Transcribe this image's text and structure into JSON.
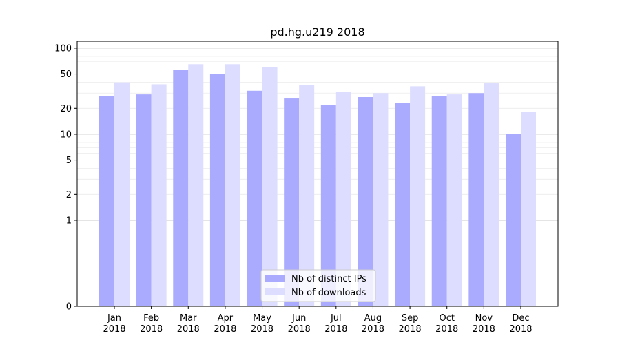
{
  "chart_data": {
    "type": "bar",
    "title": "pd.hg.u219 2018",
    "xlabel": "",
    "ylabel": "",
    "categories": [
      [
        "Jan",
        "2018"
      ],
      [
        "Feb",
        "2018"
      ],
      [
        "Mar",
        "2018"
      ],
      [
        "Apr",
        "2018"
      ],
      [
        "May",
        "2018"
      ],
      [
        "Jun",
        "2018"
      ],
      [
        "Jul",
        "2018"
      ],
      [
        "Aug",
        "2018"
      ],
      [
        "Sep",
        "2018"
      ],
      [
        "Oct",
        "2018"
      ],
      [
        "Nov",
        "2018"
      ],
      [
        "Dec",
        "2018"
      ]
    ],
    "y_scale": "symlog",
    "ylim": [
      0,
      120
    ],
    "yticks": [
      0,
      1,
      2,
      5,
      10,
      20,
      50,
      100
    ],
    "ytick_labels": [
      "0",
      "1",
      "2",
      "5",
      "10",
      "20",
      "50",
      "100"
    ],
    "series": [
      {
        "name": "Nb of distinct IPs",
        "color": "#aaaaff",
        "values": [
          28,
          29,
          56,
          50,
          32,
          26,
          22,
          27,
          23,
          28,
          30,
          10
        ]
      },
      {
        "name": "Nb of downloads",
        "color": "#ddddff",
        "values": [
          40,
          38,
          65,
          65,
          60,
          37,
          31,
          30,
          36,
          29,
          39,
          18
        ]
      }
    ],
    "legend": "lower-center",
    "grid": true
  }
}
